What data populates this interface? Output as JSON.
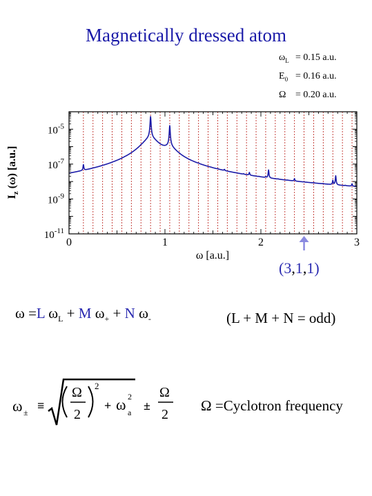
{
  "title": "Magnetically dressed atom",
  "params": [
    {
      "sym": "ω",
      "sub": "L",
      "value": "= 0.15 a.u."
    },
    {
      "sym": "E",
      "sub": "0",
      "value": "= 0.16 a.u."
    },
    {
      "sym": "Ω",
      "sub": "",
      "value": "= 0.20 a.u."
    }
  ],
  "annotation": {
    "open": "(",
    "a": "3",
    "c1": ",",
    "b": "1",
    "c2": ",",
    "c": "1",
    "close": ")"
  },
  "equation1": {
    "lhs": "ω =",
    "L": "L",
    "wL": "ω",
    "wL_sub": "L",
    "plus1": "+",
    "M": "M",
    "wp": "ω",
    "wp_sub": "+",
    "plus2": "+",
    "N": "N",
    "wm": "ω",
    "wm_sub": "-",
    "condition": "(L + M + N = odd)"
  },
  "equation2": {
    "lhs": "ω",
    "lhs_sub": "±",
    "equiv": "≡",
    "omega": "Ω",
    "two": "2",
    "sq": "2",
    "plus": "+",
    "wa": "ω",
    "wa_sub": "a",
    "wa_sup": "2",
    "pm": "±",
    "omega2": "Ω",
    "two2": "2",
    "note": "Ω =Cyclotron frequency"
  },
  "chart_data": {
    "type": "line",
    "xlabel": "ω [a.u.]",
    "ylabel": "I_z (ω) [a.u.]",
    "xlim": [
      0,
      3
    ],
    "ylim": [
      1e-11,
      0.0001
    ],
    "yscale": "log",
    "xticks": [
      "0",
      "1",
      "2",
      "3"
    ],
    "yticks": [
      {
        "base": "10",
        "exp": "-5"
      },
      {
        "base": "10",
        "exp": "-7"
      },
      {
        "base": "10",
        "exp": "-9"
      },
      {
        "base": "10",
        "exp": "-11"
      }
    ],
    "vertical_lines_x": [
      0.15,
      0.25,
      0.35,
      0.45,
      0.55,
      0.65,
      0.75,
      0.85,
      0.95,
      1.05,
      1.15,
      1.25,
      1.35,
      1.45,
      1.55,
      1.65,
      1.75,
      1.85,
      1.95,
      2.05,
      2.15,
      2.25,
      2.35,
      2.45,
      2.55,
      2.65,
      2.75,
      2.85,
      2.95
    ],
    "series": [
      {
        "color": "#1a1aa8",
        "baseline": 1e-11,
        "broad_peaks": [
          {
            "x": 0.85,
            "height": 3e-06,
            "width": 0.08
          },
          {
            "x": 1.05,
            "height": 6e-07,
            "width": 0.07
          }
        ],
        "sharp_peaks": [
          {
            "x": 0.15,
            "y": 5e-08
          },
          {
            "x": 0.25,
            "y": 2e-10
          },
          {
            "x": 0.35,
            "y": 1e-09
          },
          {
            "x": 0.45,
            "y": 1.5e-10
          },
          {
            "x": 0.46,
            "y": 1e-09
          },
          {
            "x": 0.55,
            "y": 3e-10
          },
          {
            "x": 0.58,
            "y": 6e-09
          },
          {
            "x": 0.66,
            "y": 2e-09
          },
          {
            "x": 0.75,
            "y": 4e-08
          },
          {
            "x": 0.85,
            "y": 5e-05
          },
          {
            "x": 0.92,
            "y": 1e-09
          },
          {
            "x": 1.05,
            "y": 1.5e-05
          },
          {
            "x": 1.15,
            "y": 1e-08
          },
          {
            "x": 1.22,
            "y": 1e-09
          },
          {
            "x": 1.35,
            "y": 5e-09
          },
          {
            "x": 1.45,
            "y": 5e-10
          },
          {
            "x": 1.48,
            "y": 1e-09
          },
          {
            "x": 1.55,
            "y": 3e-09
          },
          {
            "x": 1.62,
            "y": 7e-09
          },
          {
            "x": 1.75,
            "y": 8e-10
          },
          {
            "x": 1.82,
            "y": 1.5e-09
          },
          {
            "x": 1.88,
            "y": 1e-08
          },
          {
            "x": 1.98,
            "y": 6e-10
          },
          {
            "x": 2.05,
            "y": 2e-09
          },
          {
            "x": 2.08,
            "y": 3e-08
          },
          {
            "x": 2.18,
            "y": 5e-10
          },
          {
            "x": 2.28,
            "y": 3e-10
          },
          {
            "x": 2.35,
            "y": 4e-09
          },
          {
            "x": 2.45,
            "y": 2e-10
          },
          {
            "x": 2.55,
            "y": 5e-10
          },
          {
            "x": 2.65,
            "y": 3e-10
          },
          {
            "x": 2.75,
            "y": 5e-09
          },
          {
            "x": 2.78,
            "y": 1.5e-08
          },
          {
            "x": 2.88,
            "y": 3e-10
          },
          {
            "x": 2.95,
            "y": 2e-09
          }
        ]
      }
    ],
    "annotation_x": 2.45,
    "grid": false
  }
}
